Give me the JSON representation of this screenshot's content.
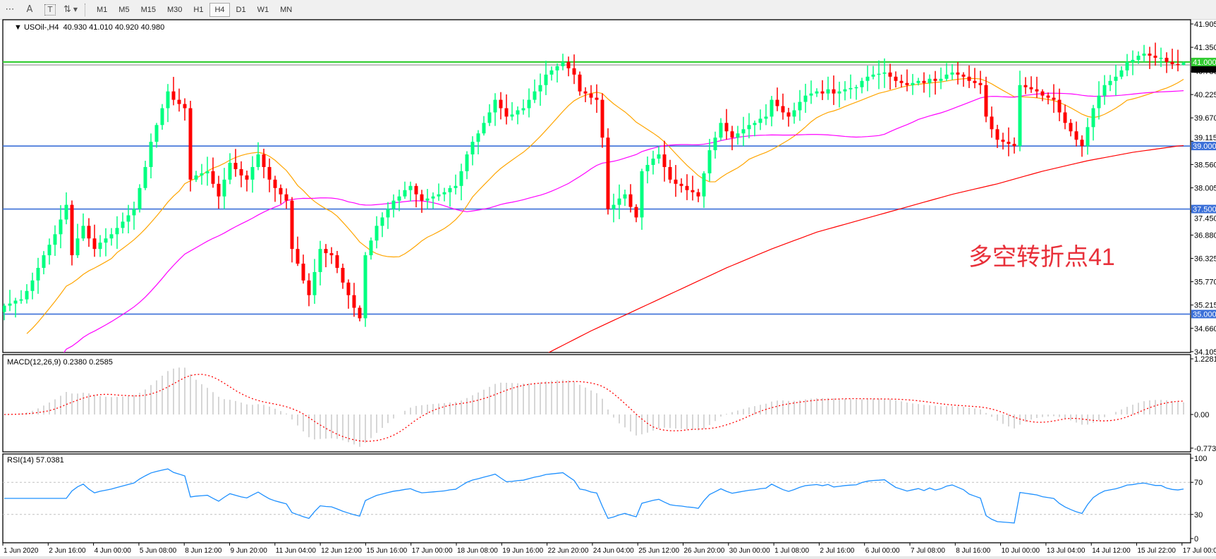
{
  "toolbar": {
    "icons": [
      "fibonacci-fan-icon",
      "text-icon",
      "text-label-icon",
      "arrows-icon"
    ],
    "icon_glyphs": [
      "⋯",
      "A",
      "T",
      "⇅"
    ],
    "timeframes": [
      "M1",
      "M5",
      "M15",
      "M30",
      "H1",
      "H4",
      "D1",
      "W1",
      "MN"
    ],
    "active_timeframe": "H4"
  },
  "header": {
    "symbol": "USOil-,H4",
    "ohlc": "40.930 41.010 40.920 40.980"
  },
  "annotation": {
    "text": "多空转折点41",
    "color": "#e8303a"
  },
  "chart_data": {
    "type": "candlestick",
    "timeframe": "H4",
    "bull_color": "#00ff80",
    "bear_color": "#ff0000",
    "closes": [
      35.2,
      35.25,
      35.32,
      35.35,
      35.55,
      35.8,
      36.1,
      36.4,
      36.65,
      36.9,
      37.25,
      37.6,
      36.4,
      36.8,
      37.1,
      36.8,
      36.55,
      36.7,
      36.8,
      36.9,
      37.05,
      37.2,
      37.35,
      37.5,
      38.0,
      38.5,
      39.1,
      39.5,
      39.9,
      40.3,
      40.1,
      40.0,
      39.9,
      38.2,
      38.3,
      38.35,
      38.4,
      38.1,
      37.8,
      38.2,
      38.6,
      38.45,
      38.3,
      38.2,
      38.5,
      38.8,
      38.5,
      38.2,
      38.0,
      37.85,
      37.7,
      36.55,
      36.2,
      35.8,
      35.45,
      36.0,
      36.55,
      36.45,
      36.4,
      36.1,
      35.75,
      35.45,
      35.15,
      34.9,
      36.4,
      36.75,
      37.1,
      37.3,
      37.5,
      37.7,
      37.8,
      37.95,
      38.05,
      37.85,
      37.7,
      37.75,
      37.8,
      37.85,
      37.9,
      38.0,
      38.05,
      38.4,
      38.8,
      39.1,
      39.3,
      39.55,
      39.8,
      40.1,
      39.9,
      39.7,
      39.75,
      39.85,
      39.9,
      40.1,
      40.3,
      40.45,
      40.7,
      40.8,
      40.9,
      41.0,
      40.85,
      40.7,
      40.3,
      40.25,
      40.15,
      40.1,
      39.2,
      37.5,
      37.6,
      37.75,
      37.85,
      37.55,
      37.3,
      38.4,
      38.55,
      38.7,
      38.8,
      38.5,
      38.2,
      38.1,
      38.05,
      37.95,
      37.9,
      37.8,
      38.35,
      38.9,
      39.2,
      39.55,
      39.35,
      39.2,
      39.3,
      39.4,
      39.5,
      39.55,
      39.65,
      39.7,
      40.1,
      39.95,
      39.8,
      39.7,
      39.85,
      40.05,
      40.2,
      40.25,
      40.3,
      40.25,
      40.35,
      40.25,
      40.3,
      40.35,
      40.38,
      40.4,
      40.55,
      40.65,
      40.7,
      40.72,
      40.75,
      40.65,
      40.55,
      40.5,
      40.45,
      40.5,
      40.55,
      40.5,
      40.6,
      40.55,
      40.6,
      40.7,
      40.75,
      40.7,
      40.65,
      40.55,
      40.5,
      40.45,
      39.7,
      39.4,
      39.15,
      39.1,
      39.05,
      39.0,
      40.45,
      40.4,
      40.35,
      40.3,
      40.2,
      40.15,
      40.1,
      39.8,
      39.55,
      39.35,
      39.15,
      39.0,
      39.45,
      39.9,
      40.2,
      40.45,
      40.55,
      40.65,
      40.8,
      41.0,
      41.05,
      41.15,
      41.2,
      41.15,
      41.1,
      41.1,
      41.0,
      40.95,
      40.93,
      40.98
    ],
    "last_bar": {
      "open": 40.93,
      "high": 41.01,
      "low": 40.92,
      "close": 40.98
    },
    "ma_fast_color": "#ffa500",
    "ma_mid_color": "#ff00ff",
    "ma_slow_color": "#ff0000",
    "ma_slow_points": [
      [
        "22 Jun 20:00",
        34.05
      ],
      [
        "24 Jun 04:00",
        34.6
      ],
      [
        "25 Jun 12:00",
        35.1
      ],
      [
        "26 Jun 20:00",
        35.6
      ],
      [
        "30 Jun 00:00",
        36.1
      ],
      [
        "1 Jul 08:00",
        36.55
      ],
      [
        "2 Jul 16:00",
        36.95
      ],
      [
        "6 Jul 00:00",
        37.25
      ],
      [
        "7 Jul 08:00",
        37.55
      ],
      [
        "8 Jul 16:00",
        37.85
      ],
      [
        "10 Jul 00:00",
        38.1
      ],
      [
        "13 Jul 04:00",
        38.4
      ],
      [
        "14 Jul 12:00",
        38.65
      ],
      [
        "15 Jul 22:00",
        38.85
      ],
      [
        "17 Jul 00:00",
        39.0
      ]
    ],
    "hlines": [
      {
        "value": 41.0,
        "label": "41.000",
        "color": "#32cd32"
      },
      {
        "value": 39.0,
        "label": "39.000",
        "color": "#3a6fd8"
      },
      {
        "value": 37.5,
        "label": "37.500",
        "color": "#3a6fd8"
      },
      {
        "value": 35.0,
        "label": "35.000",
        "color": "#3a6fd8"
      }
    ],
    "bid_line": {
      "value": 40.98,
      "color": "#808080"
    },
    "price_ticks": [
      "41.905",
      "41.350",
      "40.780",
      "40.225",
      "39.670",
      "39.115",
      "38.560",
      "38.005",
      "37.450",
      "36.880",
      "36.325",
      "35.770",
      "35.215",
      "34.660",
      "34.105"
    ],
    "ylim": [
      34.105,
      41.905
    ],
    "time_ticks": [
      "1 Jun 2020",
      "2 Jun 16:00",
      "4 Jun 00:00",
      "5 Jun 08:00",
      "8 Jun 12:00",
      "9 Jun 20:00",
      "11 Jun 04:00",
      "12 Jun 12:00",
      "15 Jun 16:00",
      "17 Jun 00:00",
      "18 Jun 08:00",
      "19 Jun 16:00",
      "22 Jun 20:00",
      "24 Jun 04:00",
      "25 Jun 12:00",
      "26 Jun 20:00",
      "30 Jun 00:00",
      "1 Jul 08:00",
      "2 Jul 16:00",
      "6 Jul 00:00",
      "7 Jul 08:00",
      "8 Jul 16:00",
      "10 Jul 00:00",
      "13 Jul 04:00",
      "14 Jul 12:00",
      "15 Jul 22:00",
      "17 Jul 00:00"
    ],
    "macd": {
      "label": "MACD(12,26,9) 0.2380 0.2585",
      "ticks": [
        "1.2281",
        "0.00",
        "-0.7738"
      ],
      "ylim": [
        -0.7738,
        1.2281
      ],
      "hist_color": "#c0c0c0",
      "signal_color": "#ff0000"
    },
    "rsi": {
      "label": "RSI(14) 57.0381",
      "ticks": [
        "100",
        "70",
        "30",
        "0"
      ],
      "levels": [
        30,
        70
      ],
      "ylim": [
        0,
        100
      ],
      "color": "#1e90ff"
    }
  }
}
